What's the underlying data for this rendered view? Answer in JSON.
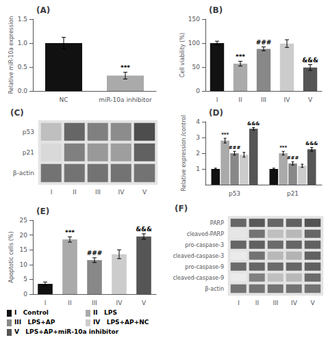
{
  "chart_data": [
    {
      "type": "bar",
      "title": "(A)",
      "categories": [
        "NC",
        "miR-10a inhibitor"
      ],
      "values": [
        1.0,
        0.32
      ],
      "errors": [
        0.12,
        0.07
      ],
      "colors": [
        "#111111",
        "#aaaaaa"
      ],
      "ylabel": "Relative miR-10a expression",
      "ylim": [
        0,
        1.5
      ],
      "yticks": [
        {
          "value": 0,
          "label": "0.0"
        },
        0.5,
        {
          "value": 1,
          "label": "1.0"
        },
        1.5
      ],
      "grid": false,
      "annotations": [
        {
          "category": "miR-10a inhibitor",
          "text": "***"
        }
      ]
    },
    {
      "type": "bar",
      "title": "(B)",
      "categories": [
        "I",
        "II",
        "III",
        "IV",
        "V"
      ],
      "values": [
        100,
        57,
        88,
        99,
        49
      ],
      "errors": [
        4,
        5,
        4,
        8,
        6
      ],
      "colors": [
        "#111111",
        "#aaaaaa",
        "#888888",
        "#cccccc",
        "#555555"
      ],
      "ylabel": "Cell viability (%)",
      "ylim": [
        0,
        150
      ],
      "yticks": [
        0,
        50,
        100,
        150
      ],
      "grid": false,
      "annotations": [
        {
          "category": "II",
          "text": "***"
        },
        {
          "category": "III",
          "text": "###"
        },
        {
          "category": "V",
          "text": "&&&"
        }
      ]
    },
    {
      "type": "heatmap",
      "title": "(C)",
      "x": [
        "I",
        "II",
        "III",
        "IV",
        "V"
      ],
      "y": [
        "p53",
        "p21",
        "β-actin"
      ],
      "cells": [
        [
          0.25,
          0.6,
          0.5,
          0.45,
          0.7
        ],
        [
          0.15,
          0.5,
          0.4,
          0.38,
          0.62
        ],
        [
          0.55,
          0.55,
          0.55,
          0.55,
          0.55
        ]
      ]
    },
    {
      "type": "bar",
      "title": "(D)",
      "categories": [
        "p53",
        "p21"
      ],
      "series": [
        {
          "color": "#111111",
          "values": [
            1.0,
            1.0
          ],
          "errors": [
            0.05,
            0.05
          ]
        },
        {
          "color": "#aaaaaa",
          "values": [
            2.8,
            2.0
          ],
          "errors": [
            0.15,
            0.12
          ]
        },
        {
          "color": "#888888",
          "values": [
            2.0,
            1.35
          ],
          "errors": [
            0.12,
            0.1
          ]
        },
        {
          "color": "#cccccc",
          "values": [
            1.9,
            1.2
          ],
          "errors": [
            0.15,
            0.1
          ]
        },
        {
          "color": "#555555",
          "values": [
            3.55,
            2.25
          ],
          "errors": [
            0.08,
            0.12
          ]
        }
      ],
      "ylabel": "Relative expression /control",
      "ylim": [
        0,
        4
      ],
      "yticks": [
        1,
        2,
        3,
        4
      ],
      "grid": false,
      "annotations": [
        {
          "category": "p53",
          "series": 1,
          "text": "***"
        },
        {
          "category": "p53",
          "series": 2,
          "text": "###"
        },
        {
          "category": "p53",
          "series": 4,
          "text": "&&&"
        },
        {
          "category": "p21",
          "series": 1,
          "text": "***"
        },
        {
          "category": "p21",
          "series": 2,
          "text": "###"
        },
        {
          "category": "p21",
          "series": 4,
          "text": "&&&"
        }
      ]
    },
    {
      "type": "bar",
      "title": "(E)",
      "categories": [
        "I",
        "II",
        "III",
        "IV",
        "V"
      ],
      "values": [
        3.5,
        18.5,
        11.5,
        13.5,
        19.5
      ],
      "errors": [
        0.6,
        0.9,
        0.8,
        1.5,
        0.9
      ],
      "colors": [
        "#111111",
        "#aaaaaa",
        "#888888",
        "#cccccc",
        "#555555"
      ],
      "ylabel": "Apoptotic cells (%)",
      "ylim": [
        0,
        25
      ],
      "yticks": [
        0,
        5,
        10,
        15,
        20,
        25
      ],
      "grid": false,
      "annotations": [
        {
          "category": "II",
          "text": "***"
        },
        {
          "category": "III",
          "text": "###"
        },
        {
          "category": "V",
          "text": "&&&"
        }
      ]
    },
    {
      "type": "heatmap",
      "title": "(F)",
      "x": [
        "I",
        "II",
        "III",
        "IV",
        "V"
      ],
      "y": [
        "PARP",
        "cleaved-PARP",
        "pro-caspase-3",
        "cleaved-caspase-3",
        "pro-caspase-9",
        "cleaved-caspase-9",
        "β-actin"
      ],
      "cells": [
        [
          0.6,
          0.65,
          0.6,
          0.62,
          0.68
        ],
        [
          0.1,
          0.55,
          0.25,
          0.28,
          0.6
        ],
        [
          0.6,
          0.62,
          0.58,
          0.6,
          0.62
        ],
        [
          0.08,
          0.55,
          0.28,
          0.3,
          0.62
        ],
        [
          0.58,
          0.6,
          0.58,
          0.6,
          0.62
        ],
        [
          0.08,
          0.5,
          0.25,
          0.28,
          0.58
        ],
        [
          0.55,
          0.55,
          0.55,
          0.55,
          0.55
        ]
      ]
    },
    {
      "type": "legend",
      "series": [
        {
          "name": "I   Control",
          "color": "#111111"
        },
        {
          "name": "II   LPS",
          "color": "#aaaaaa"
        },
        {
          "name": "III   LPS+AP",
          "color": "#888888"
        },
        {
          "name": "IV   LPS+AP+NC",
          "color": "#cccccc"
        },
        {
          "name": "V   LPS+AP+miR-10a inhibitor",
          "color": "#555555"
        }
      ]
    }
  ]
}
